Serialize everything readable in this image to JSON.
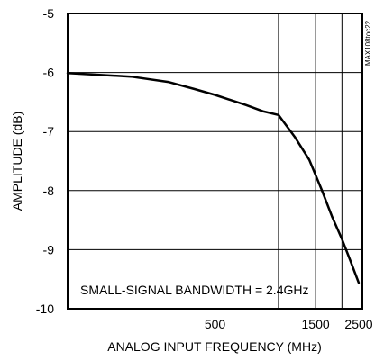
{
  "chart_data": {
    "type": "line",
    "title": "",
    "xlabel": "ANALOG INPUT FREQUENCY (MHz)",
    "ylabel": "AMPLITUDE (dB)",
    "x_scale": "log",
    "xlim": [
      100,
      2500
    ],
    "ylim": [
      -10,
      -5
    ],
    "x_gridlines": [
      1000,
      1500,
      2000
    ],
    "y_ticks": [
      -5,
      -6,
      -7,
      -8,
      -9,
      -10
    ],
    "y_tick_labels": [
      "-5",
      "-6",
      "-7",
      "-8",
      "-9",
      "-10"
    ],
    "x_ticks": [
      500,
      1500,
      2500
    ],
    "x_tick_labels": [
      "500",
      "1500",
      "2500"
    ],
    "grid": true,
    "annotation": "SMALL-SIGNAL BANDWIDTH = 2.4GHz",
    "side_id": "MAX108toc22",
    "series": [
      {
        "points": [
          [
            100,
            -6.01
          ],
          [
            200,
            -6.07
          ],
          [
            300,
            -6.16
          ],
          [
            400,
            -6.28
          ],
          [
            500,
            -6.38
          ],
          [
            700,
            -6.55
          ],
          [
            850,
            -6.66
          ],
          [
            1000,
            -6.72
          ],
          [
            1200,
            -7.1
          ],
          [
            1400,
            -7.48
          ],
          [
            1600,
            -7.98
          ],
          [
            1800,
            -8.45
          ],
          [
            2000,
            -8.82
          ],
          [
            2200,
            -9.2
          ],
          [
            2400,
            -9.56
          ]
        ]
      }
    ]
  }
}
